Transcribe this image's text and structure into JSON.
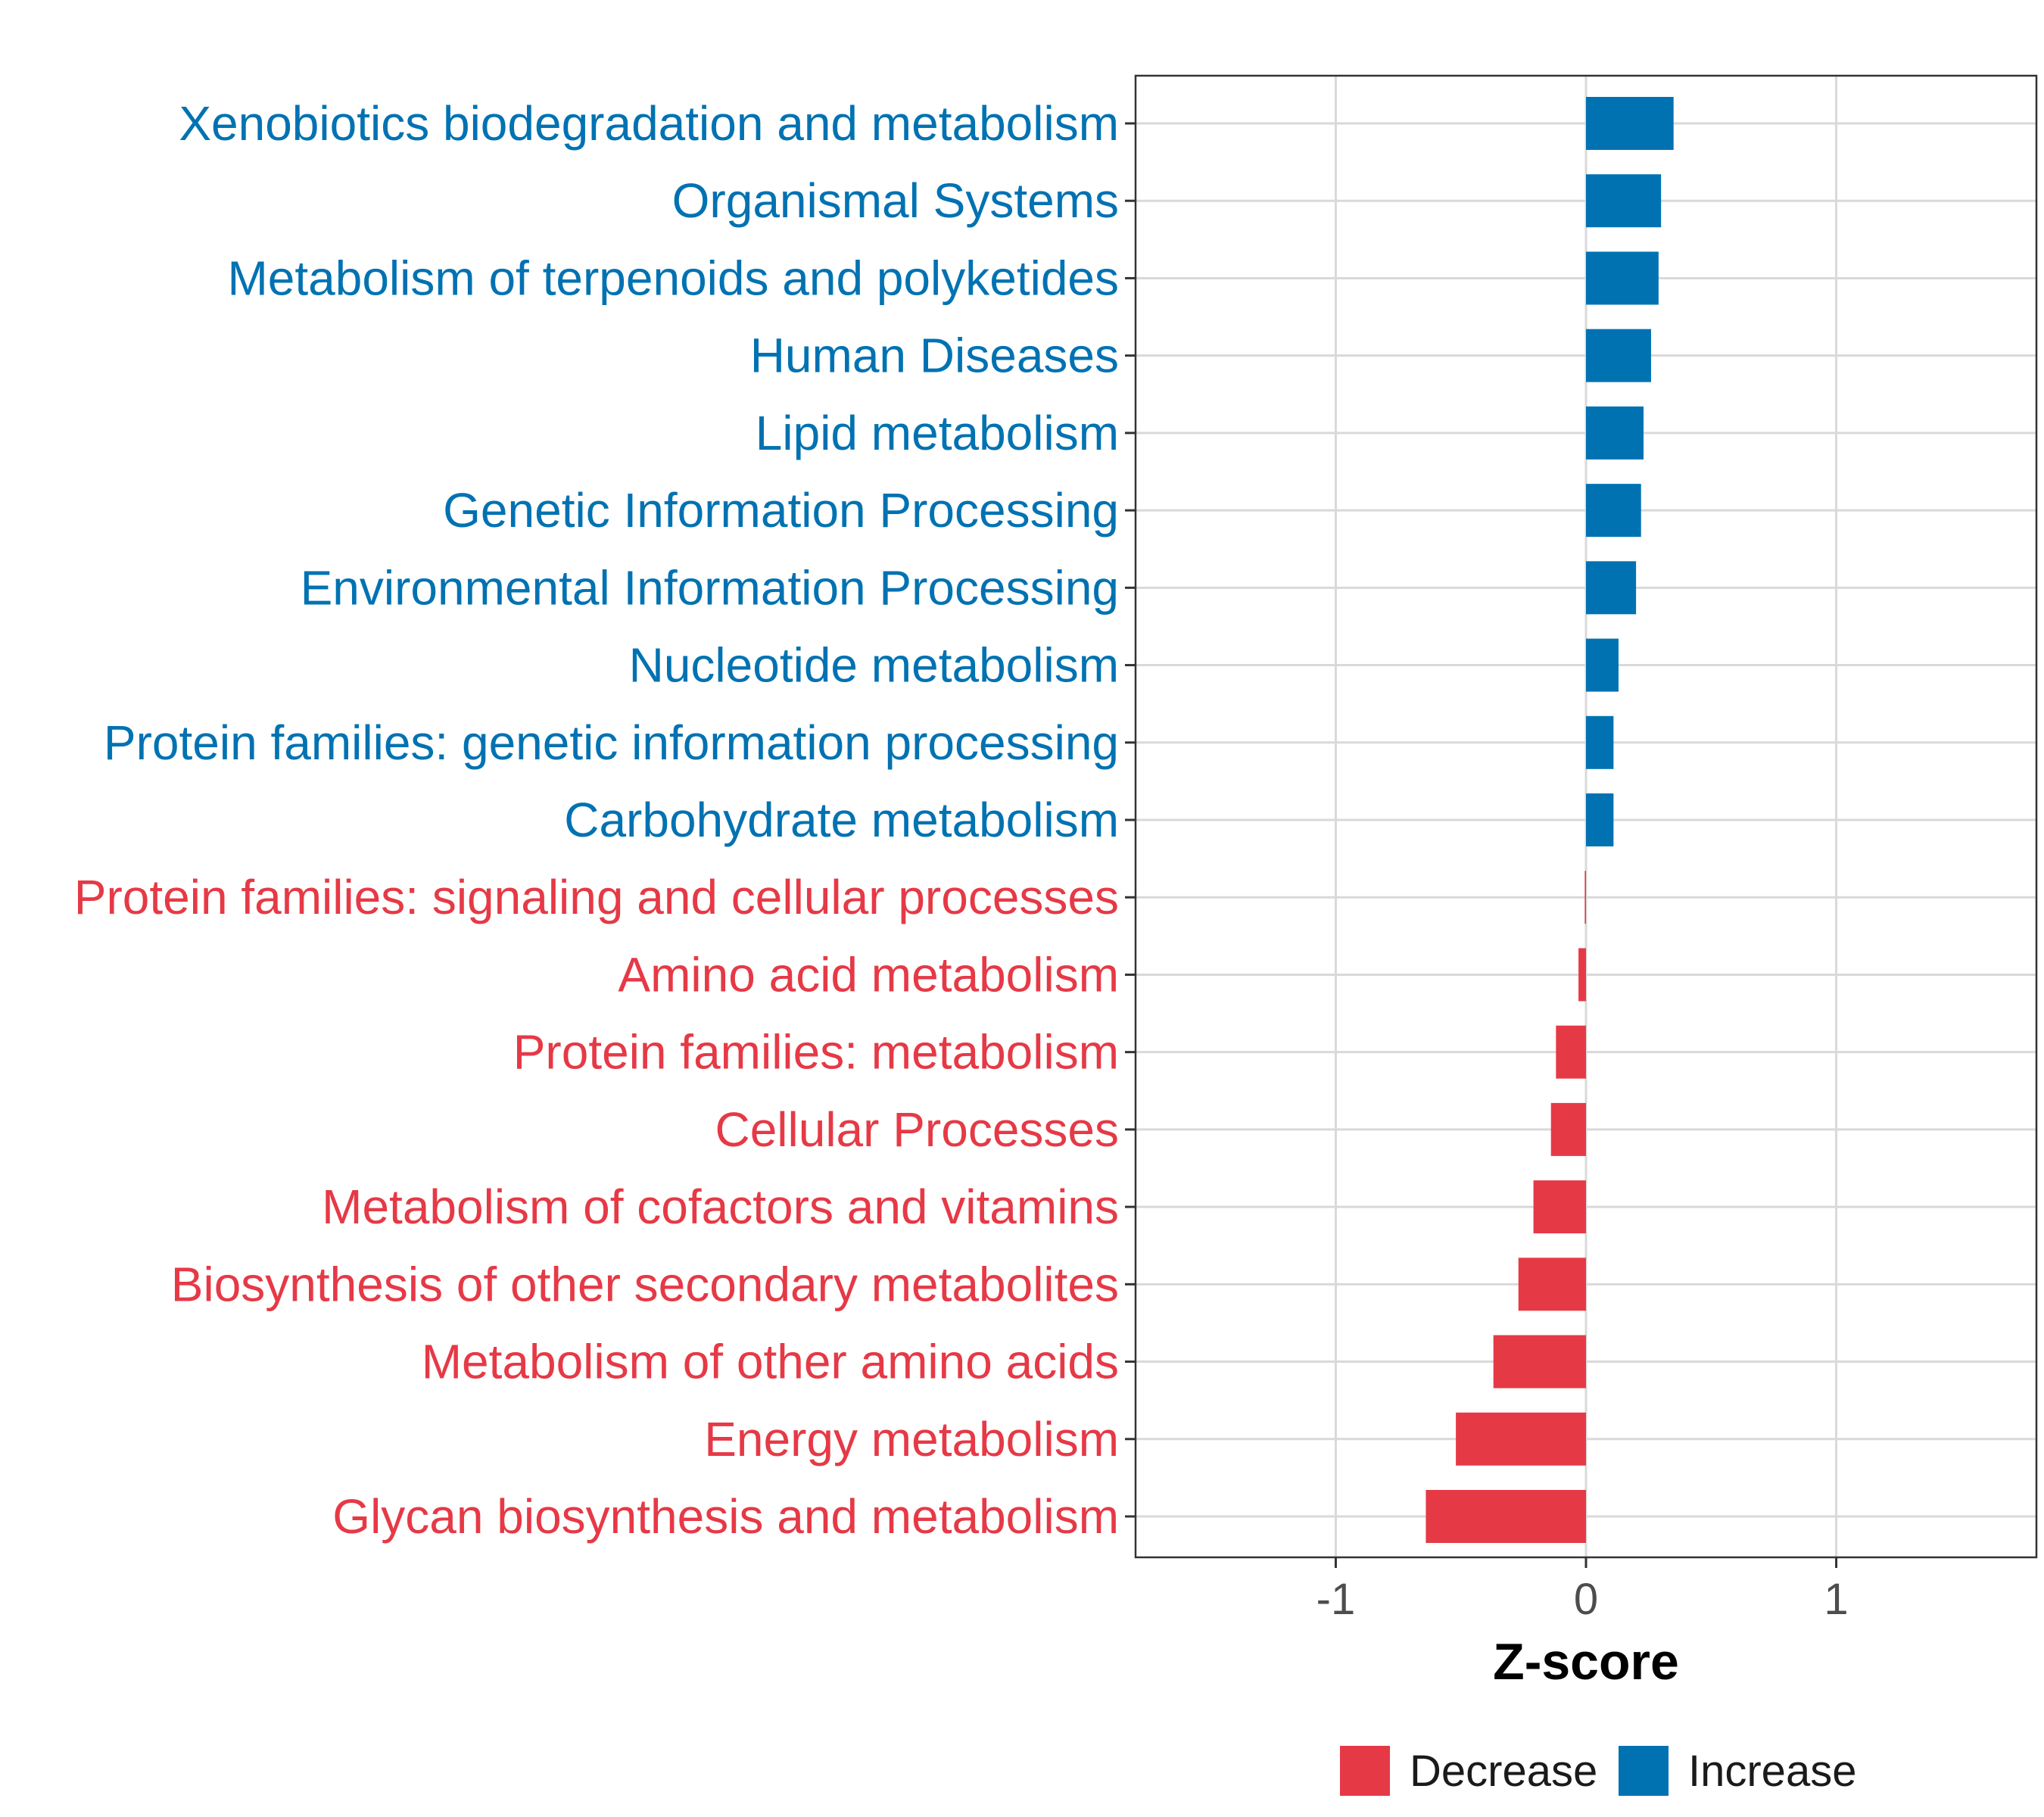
{
  "chart_data": {
    "type": "bar",
    "orientation": "horizontal",
    "title": "",
    "xlabel": "Z-score",
    "ylabel": "",
    "xlim": [
      -1.8,
      1.8
    ],
    "x_ticks": [
      -1,
      0,
      1
    ],
    "x_tick_labels": [
      "-1",
      "0",
      "1"
    ],
    "grid": true,
    "legend_position": "bottom",
    "colors": {
      "Decrease": "#e63946",
      "Increase": "#0072b2"
    },
    "legend": [
      {
        "label": "Decrease",
        "color": "#e63946"
      },
      {
        "label": "Increase",
        "color": "#0072b2"
      }
    ],
    "categories": [
      "Xenobiotics biodegradation and metabolism",
      "Organismal Systems",
      "Metabolism of terpenoids and polyketides",
      "Human Diseases",
      "Lipid metabolism",
      "Genetic Information Processing",
      "Environmental Information Processing",
      "Nucleotide metabolism",
      "Protein families: genetic information processing",
      "Carbohydrate metabolism",
      "Protein families: signaling and cellular processes",
      "Amino acid metabolism",
      "Protein families: metabolism",
      "Cellular Processes",
      "Metabolism of cofactors and vitamins",
      "Biosynthesis of other secondary metabolites",
      "Metabolism of other amino acids",
      "Energy metabolism",
      "Glycan biosynthesis and metabolism"
    ],
    "values": [
      0.35,
      0.3,
      0.29,
      0.26,
      0.23,
      0.22,
      0.2,
      0.13,
      0.11,
      0.11,
      -0.005,
      -0.03,
      -0.12,
      -0.14,
      -0.21,
      -0.27,
      -0.37,
      -0.52,
      -0.64
    ],
    "groups": [
      "Increase",
      "Increase",
      "Increase",
      "Increase",
      "Increase",
      "Increase",
      "Increase",
      "Increase",
      "Increase",
      "Increase",
      "Decrease",
      "Decrease",
      "Decrease",
      "Decrease",
      "Decrease",
      "Decrease",
      "Decrease",
      "Decrease",
      "Decrease"
    ]
  }
}
